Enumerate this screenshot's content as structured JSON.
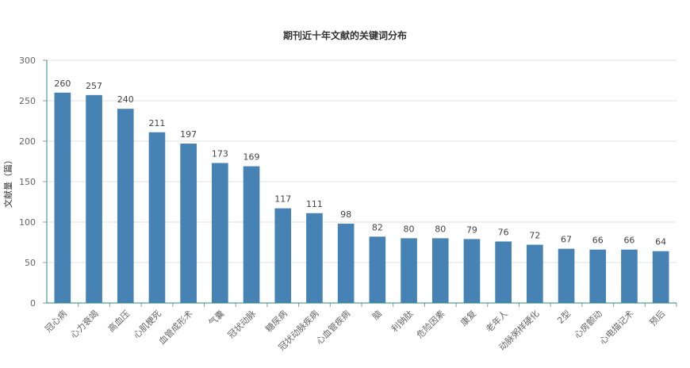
{
  "chart_data": {
    "type": "bar",
    "title": "期刊近十年文献的关键词分布",
    "xlabel": "",
    "ylabel": "文献量（篇）",
    "ylim": [
      0,
      300
    ],
    "yticks": [
      0,
      50,
      100,
      150,
      200,
      250,
      300
    ],
    "grid": true,
    "categories": [
      "冠心病",
      "心力衰竭",
      "高血压",
      "心肌梗死",
      "血管成形术",
      "气囊",
      "冠状动脉",
      "糖尿病",
      "冠状动脉疾病",
      "心血管疾病",
      "脑",
      "利钠肽",
      "危险因素",
      "康复",
      "老年人",
      "动脉粥样硬化",
      "2型",
      "心房颤动",
      "心电描记术",
      "预后"
    ],
    "values": [
      260,
      257,
      240,
      211,
      197,
      173,
      169,
      117,
      111,
      98,
      82,
      80,
      80,
      79,
      76,
      72,
      67,
      66,
      66,
      64
    ],
    "colors": {
      "bar": "#4682b4",
      "axis": "#2a8a82",
      "grid": "#e0e0e0"
    }
  }
}
